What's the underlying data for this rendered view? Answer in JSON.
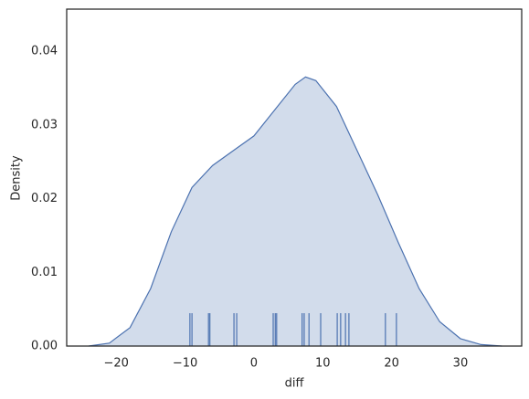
{
  "chart_data": {
    "type": "kde",
    "xlabel": "diff",
    "ylabel": "Density",
    "x": [
      -24,
      -21,
      -18,
      -15,
      -12,
      -9,
      -6,
      -3,
      0,
      3,
      6,
      7.5,
      9,
      12,
      15,
      18,
      21,
      24,
      27,
      30,
      33,
      36
    ],
    "values": [
      0,
      0.0004,
      0.0025,
      0.0078,
      0.0155,
      0.0215,
      0.0245,
      0.0265,
      0.0285,
      0.032,
      0.0355,
      0.0365,
      0.036,
      0.0325,
      0.0265,
      0.0205,
      0.014,
      0.0078,
      0.0033,
      0.001,
      0.0002,
      0
    ],
    "rug": [
      -9.3,
      -9.0,
      -6.6,
      -6.4,
      -2.9,
      -2.5,
      2.8,
      3.1,
      3.3,
      7.0,
      7.3,
      8.0,
      9.7,
      12.1,
      12.6,
      13.3,
      13.8,
      19.1,
      20.7
    ],
    "color": "#4c72b0",
    "xlim": [
      -27.2,
      38.9
    ],
    "ylim": [
      0,
      0.0457
    ],
    "xticks": [
      {
        "value": -20,
        "label": "−20"
      },
      {
        "value": -10,
        "label": "−10"
      },
      0,
      10,
      20,
      30
    ],
    "yticks": [
      {
        "value": 0,
        "label": "0.00"
      },
      {
        "value": 0.01,
        "label": "0.01"
      },
      {
        "value": 0.02,
        "label": "0.02"
      },
      {
        "value": 0.03,
        "label": "0.03"
      },
      {
        "value": 0.04,
        "label": "0.04"
      }
    ],
    "grid": false
  }
}
